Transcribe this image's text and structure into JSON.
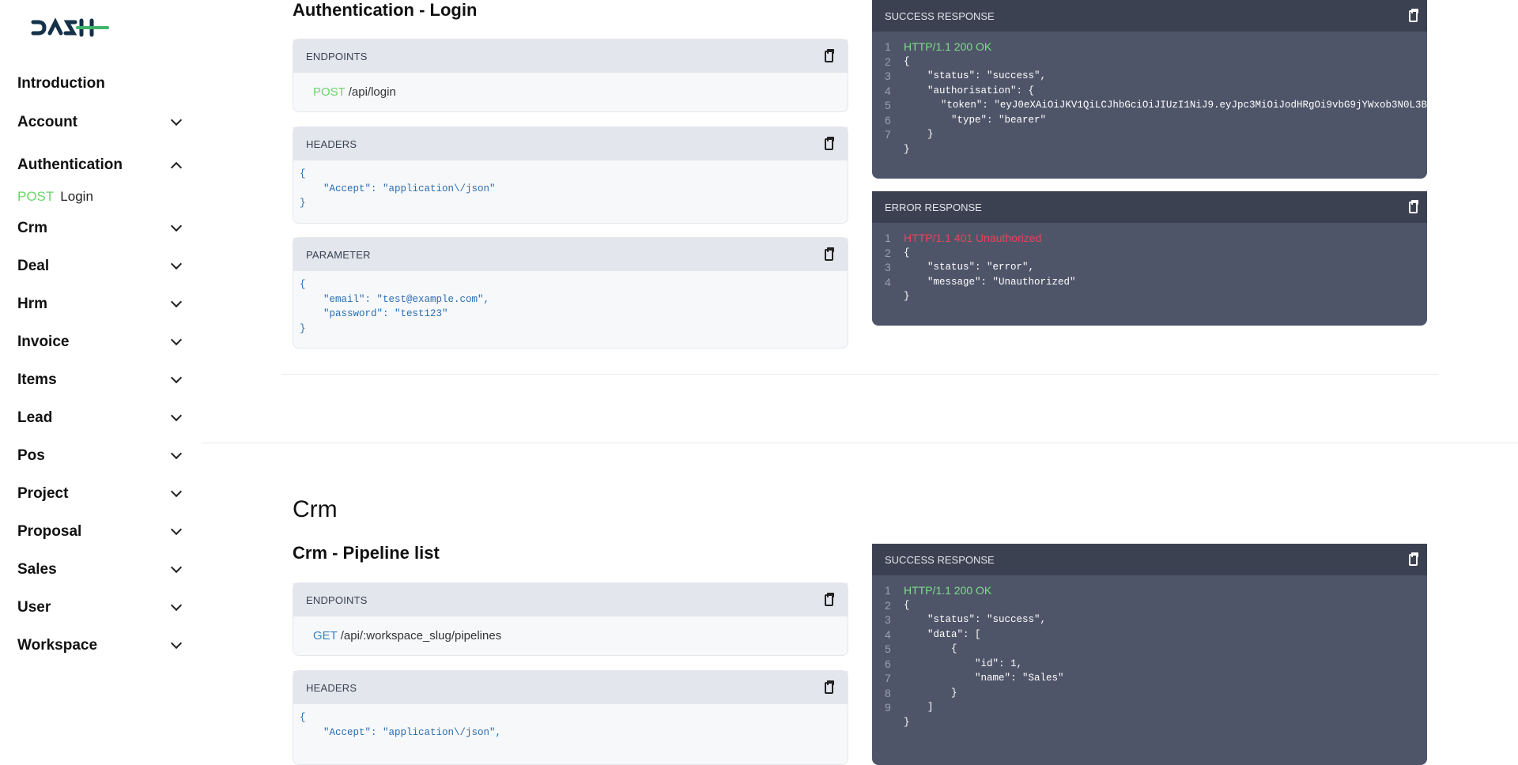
{
  "logo": "DASH",
  "sidebar": {
    "items": [
      {
        "label": "Introduction",
        "expandable": false
      },
      {
        "label": "Account",
        "expandable": true
      },
      {
        "label": "Authentication",
        "expandable": true,
        "expanded": true
      },
      {
        "label": "Crm",
        "expandable": true
      },
      {
        "label": "Deal",
        "expandable": true
      },
      {
        "label": "Hrm",
        "expandable": true
      },
      {
        "label": "Invoice",
        "expandable": true
      },
      {
        "label": "Items",
        "expandable": true
      },
      {
        "label": "Lead",
        "expandable": true
      },
      {
        "label": "Pos",
        "expandable": true
      },
      {
        "label": "Project",
        "expandable": true
      },
      {
        "label": "Proposal",
        "expandable": true
      },
      {
        "label": "Sales",
        "expandable": true
      },
      {
        "label": "User",
        "expandable": true
      },
      {
        "label": "Workspace",
        "expandable": true
      }
    ],
    "sub_item": {
      "method": "POST",
      "label": "Login"
    }
  },
  "auth": {
    "title": "Authentication - Login",
    "endpoints": {
      "label": "ENDPOINTS",
      "method": "POST",
      "path": "/api/login"
    },
    "headers": {
      "label": "HEADERS",
      "code": "{\n    \"Accept\": \"application\\/json\"\n}"
    },
    "parameter": {
      "label": "PARAMETER",
      "code": "{\n    \"email\": \"test@example.com\",\n    \"password\": \"test123\"\n}"
    },
    "success": {
      "label": "SUCCESS RESPONSE",
      "status": "HTTP/1.1 200 OK",
      "lines": [
        "{",
        "    \"status\": \"success\",",
        "    \"authorisation\": {",
        "        \"token\": \"eyJ0eXAiOiJKV1QiLCJhbGciOiJIUzI1NiJ9.eyJpc3MiOiJodHRgOi9vbG9jYWxob3N0L3B",
        "        \"type\": \"bearer\"",
        "    }",
        "}"
      ]
    },
    "error": {
      "label": "ERROR RESPONSE",
      "status": "HTTP/1.1 401 Unauthorized",
      "lines": [
        "{",
        "    \"status\": \"error\",",
        "    \"message\": \"Unauthorized\"",
        "}"
      ]
    }
  },
  "crm": {
    "section_title": "Crm",
    "title": "Crm - Pipeline list",
    "endpoints": {
      "label": "ENDPOINTS",
      "method": "GET",
      "path": "/api/:workspace_slug/pipelines"
    },
    "headers": {
      "label": "HEADERS",
      "code": "{\n    \"Accept\": \"application\\/json\","
    },
    "success": {
      "label": "SUCCESS RESPONSE",
      "status": "HTTP/1.1 200 OK",
      "lines": [
        "{",
        "    \"status\": \"success\",",
        "    \"data\": [",
        "        {",
        "            \"id\": 1,",
        "            \"name\": \"Sales\"",
        "        }",
        "    ]",
        "}"
      ]
    }
  },
  "colors": {
    "post": "#6cd56c",
    "get": "#3b82c4",
    "ok": "#7ddc8a",
    "error": "#e8445a",
    "dark_panel": "#4f5569"
  }
}
